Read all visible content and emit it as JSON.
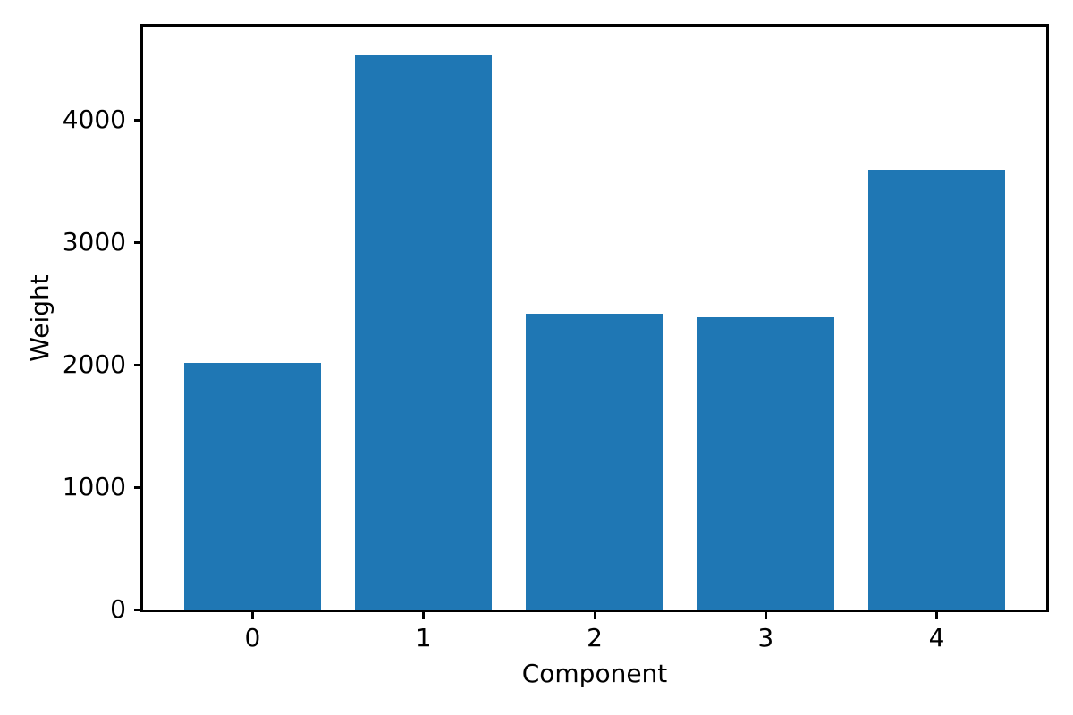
{
  "figure": {
    "background": "#ffffff"
  },
  "chart_data": {
    "type": "bar",
    "title": "",
    "xlabel": "Component",
    "ylabel": "Weight",
    "categories": [
      "0",
      "1",
      "2",
      "3",
      "4"
    ],
    "values": [
      2015,
      4535,
      2415,
      2390,
      3595
    ],
    "yticks": [
      0,
      1000,
      2000,
      3000,
      4000
    ],
    "ytick_labels": [
      "0",
      "1000",
      "2000",
      "3000",
      "4000"
    ],
    "ylim": [
      0,
      4760
    ],
    "xlim": [
      -0.64,
      4.64
    ],
    "bar_width": 0.8,
    "bar_color": "#1f77b4",
    "axis_color": "#000000",
    "text_color": "#000000",
    "grid": false,
    "legend_position": "none"
  }
}
